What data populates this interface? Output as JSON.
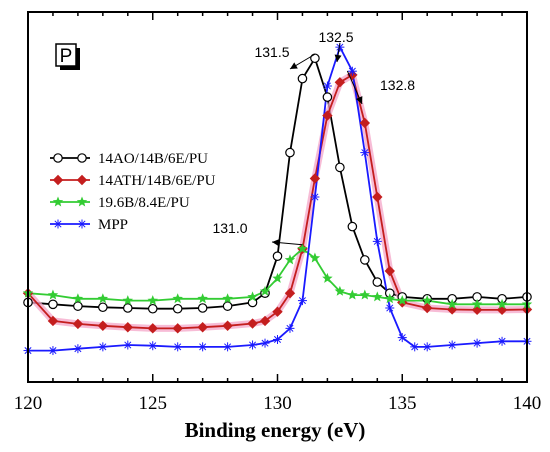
{
  "chart_data": {
    "type": "line",
    "xlabel": "Binding energy (eV)",
    "ylabel": "",
    "xlim": [
      120,
      140
    ],
    "xticks": [
      120,
      125,
      130,
      135,
      140
    ],
    "ylim": [
      0,
      1
    ],
    "yticks_shown": false,
    "grid": false,
    "legend_position": "middle-left",
    "panel_label": "P",
    "series": [
      {
        "name": "14AO/14B/6E/PU",
        "color": "#000000",
        "marker": "open-circle",
        "x": [
          120,
          121,
          122,
          123,
          124,
          125,
          126,
          127,
          128,
          129,
          129.5,
          130,
          130.5,
          131,
          131.5,
          132,
          132.5,
          133,
          133.5,
          134,
          134.5,
          135,
          136,
          137,
          138,
          139,
          140
        ],
        "y": [
          0.215,
          0.21,
          0.205,
          0.202,
          0.2,
          0.198,
          0.198,
          0.2,
          0.205,
          0.215,
          0.24,
          0.34,
          0.62,
          0.82,
          0.875,
          0.77,
          0.58,
          0.42,
          0.33,
          0.27,
          0.24,
          0.23,
          0.225,
          0.225,
          0.23,
          0.225,
          0.23
        ]
      },
      {
        "name": "14ATH/14B/6E/PU",
        "color": "#c41e1e",
        "marker": "filled-diamond",
        "x": [
          120,
          121,
          122,
          123,
          124,
          125,
          126,
          127,
          128,
          129,
          129.5,
          130,
          130.5,
          131,
          131.5,
          132,
          132.5,
          133,
          133.5,
          134,
          134.5,
          135,
          136,
          137,
          138,
          139,
          140
        ],
        "y": [
          0.24,
          0.165,
          0.157,
          0.152,
          0.148,
          0.145,
          0.145,
          0.148,
          0.152,
          0.158,
          0.165,
          0.19,
          0.24,
          0.36,
          0.55,
          0.72,
          0.81,
          0.83,
          0.7,
          0.5,
          0.3,
          0.215,
          0.2,
          0.196,
          0.195,
          0.195,
          0.196
        ]
      },
      {
        "name": "19.6B/8.4E/PU",
        "color": "#33cc33",
        "marker": "star",
        "x": [
          120,
          121,
          122,
          123,
          124,
          125,
          126,
          127,
          128,
          129,
          129.5,
          130,
          130.5,
          131,
          131.5,
          132,
          132.5,
          133,
          133.5,
          134,
          134.5,
          135,
          136,
          137,
          138,
          139,
          140
        ],
        "y": [
          0.24,
          0.235,
          0.225,
          0.225,
          0.22,
          0.22,
          0.225,
          0.225,
          0.225,
          0.23,
          0.245,
          0.28,
          0.33,
          0.36,
          0.335,
          0.28,
          0.245,
          0.235,
          0.235,
          0.23,
          0.225,
          0.22,
          0.22,
          0.21,
          0.21,
          0.21,
          0.21
        ]
      },
      {
        "name": "MPP",
        "color": "#1a1aff",
        "marker": "asterisk",
        "x": [
          120,
          121,
          122,
          123,
          124,
          125,
          126,
          127,
          128,
          129,
          129.5,
          130,
          130.5,
          131,
          131.5,
          132,
          132.5,
          133,
          133.5,
          134,
          134.5,
          135,
          135.5,
          136,
          137,
          138,
          139,
          140
        ],
        "y": [
          0.085,
          0.085,
          0.09,
          0.095,
          0.1,
          0.098,
          0.095,
          0.095,
          0.095,
          0.1,
          0.105,
          0.115,
          0.145,
          0.22,
          0.5,
          0.8,
          0.905,
          0.84,
          0.62,
          0.38,
          0.2,
          0.12,
          0.095,
          0.095,
          0.1,
          0.105,
          0.11,
          0.11
        ]
      }
    ],
    "annotations": [
      {
        "text": "131.5",
        "x": 131.5,
        "y": 0.875
      },
      {
        "text": "132.5",
        "x": 132.5,
        "y": 0.905
      },
      {
        "text": "132.8",
        "x": 132.8,
        "y": 0.83
      },
      {
        "text": "131.0",
        "x": 131.0,
        "y": 0.36
      }
    ]
  }
}
